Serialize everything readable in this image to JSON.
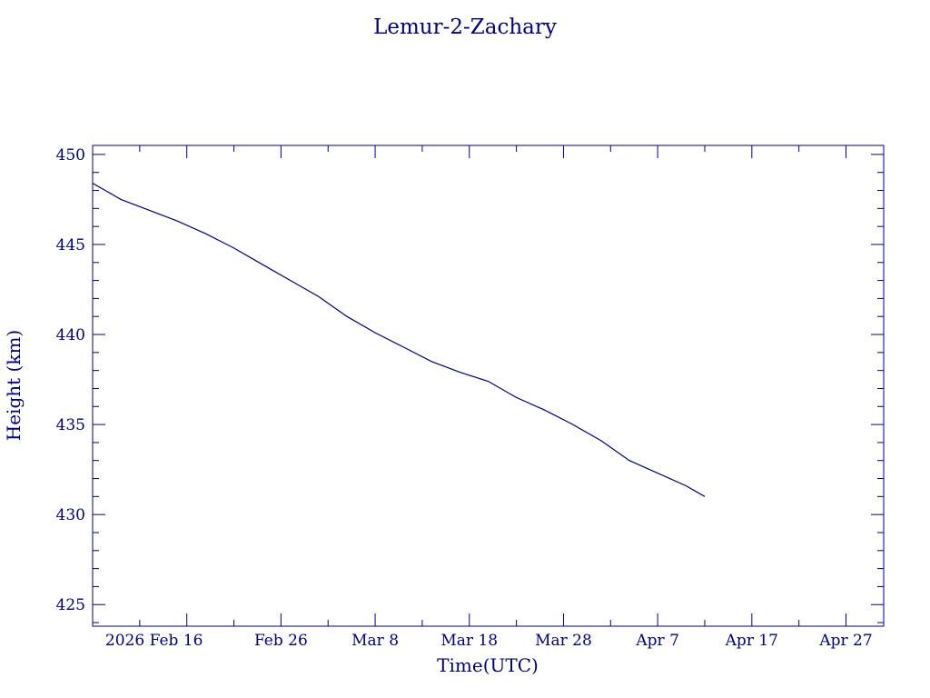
{
  "chart_data": {
    "type": "line",
    "title": "Lemur-2-Zachary",
    "xlabel": "Time(UTC)",
    "ylabel": "Height (km)",
    "color": "#00007f",
    "xlim": [
      "2026-02-06T00:00",
      "2026-05-01T00:00"
    ],
    "ylim": [
      423.8,
      450.5
    ],
    "grid": false,
    "x_ticks": [
      {
        "date": "2026-02-16",
        "label": "2026 Feb 16"
      },
      {
        "date": "2026-02-26",
        "label": "Feb 26"
      },
      {
        "date": "2026-03-08",
        "label": "Mar  8"
      },
      {
        "date": "2026-03-18",
        "label": "Mar 18"
      },
      {
        "date": "2026-03-28",
        "label": "Mar 28"
      },
      {
        "date": "2026-04-07",
        "label": "Apr  7"
      },
      {
        "date": "2026-04-17",
        "label": "Apr 17"
      },
      {
        "date": "2026-04-27",
        "label": "Apr 27"
      }
    ],
    "y_ticks": [
      425,
      430,
      435,
      440,
      445,
      450
    ],
    "series": [
      {
        "x": [
          "2026-02-06",
          "2026-02-09",
          "2026-02-12",
          "2026-02-15",
          "2026-02-18",
          "2026-02-21",
          "2026-02-24",
          "2026-02-27",
          "2026-03-02",
          "2026-03-05",
          "2026-03-08",
          "2026-03-11",
          "2026-03-14",
          "2026-03-17",
          "2026-03-20",
          "2026-03-23",
          "2026-03-26",
          "2026-03-29",
          "2026-04-01",
          "2026-04-04",
          "2026-04-07",
          "2026-04-10",
          "2026-04-12"
        ],
        "y": [
          448.4,
          447.5,
          446.9,
          446.3,
          445.6,
          444.8,
          443.9,
          443.0,
          442.1,
          441.0,
          440.1,
          439.3,
          438.5,
          437.9,
          437.4,
          436.5,
          435.8,
          435.0,
          434.1,
          433.0,
          432.3,
          431.6,
          431.0
        ]
      }
    ]
  }
}
